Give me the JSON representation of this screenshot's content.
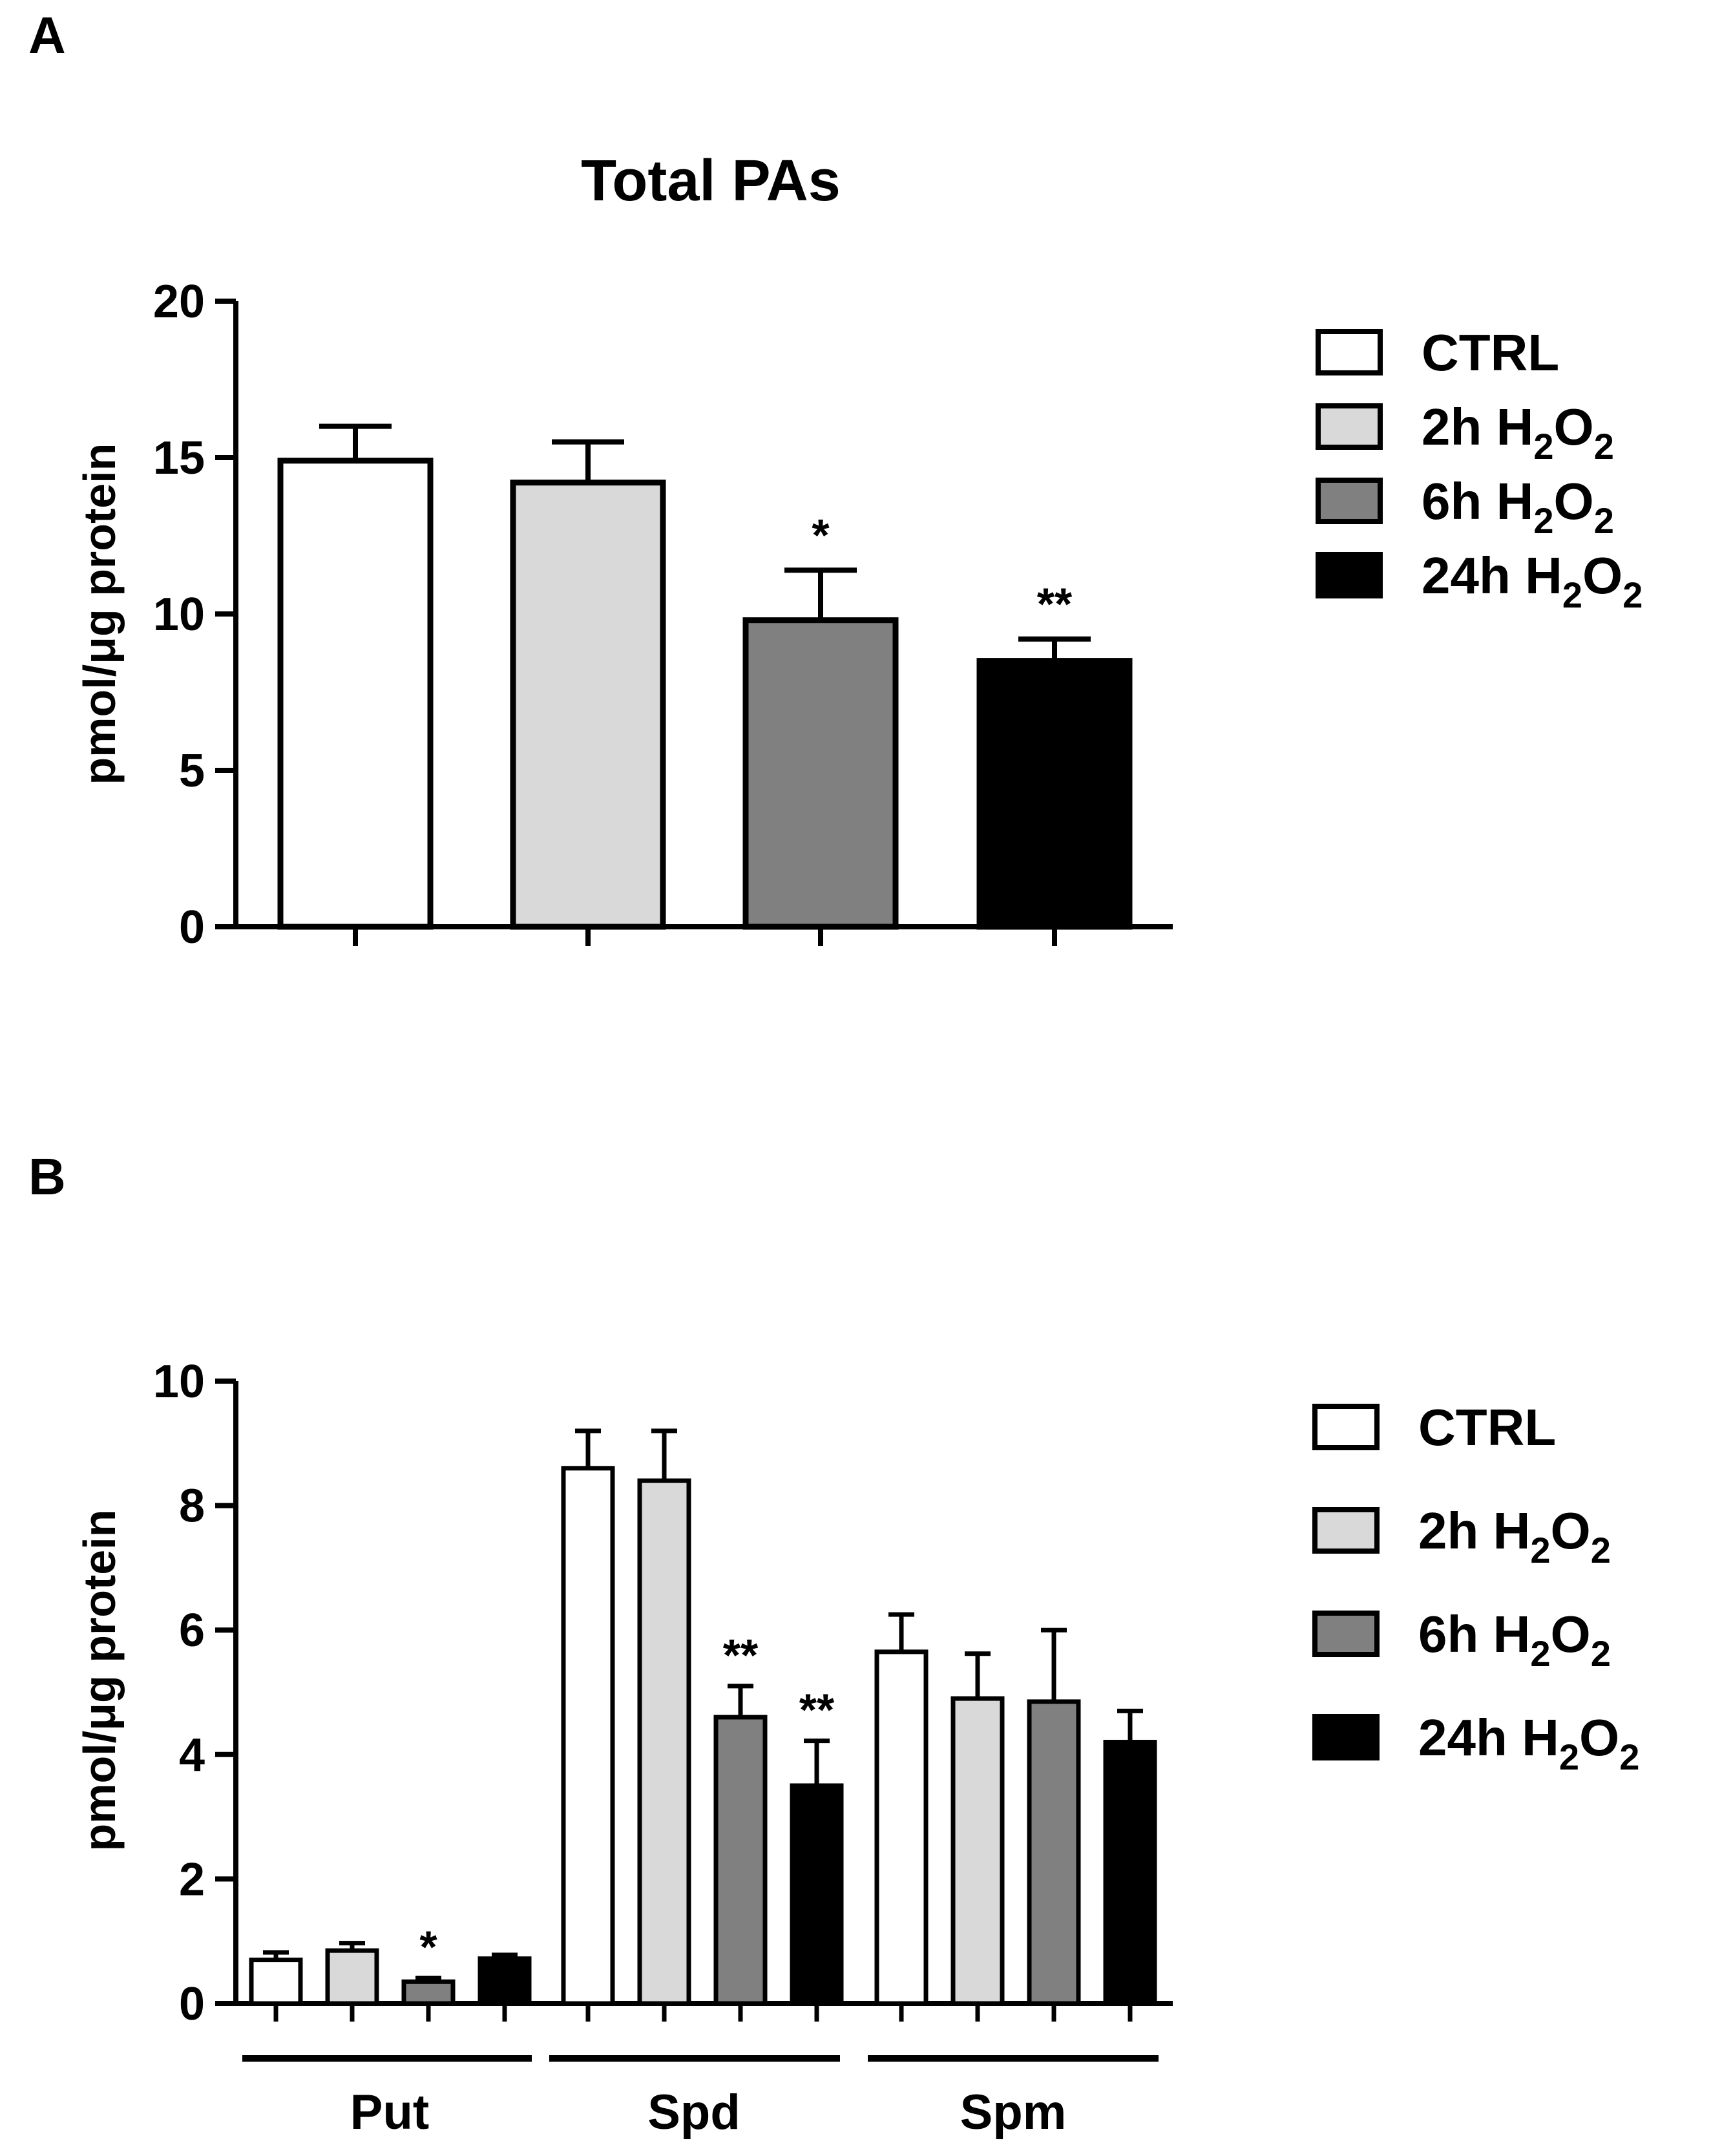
{
  "chart_data": [
    {
      "panel": "A",
      "type": "bar",
      "title": "Total PAs",
      "ylabel": "pmol/μg protein",
      "xlabel": "",
      "ylim": [
        0,
        20
      ],
      "yticks": [
        0,
        5,
        10,
        15,
        20
      ],
      "categories": [
        "CTRL",
        "2h H2O2",
        "6h H2O2",
        "24h H2O2"
      ],
      "values": [
        14.9,
        14.2,
        9.8,
        8.5
      ],
      "errors": [
        1.1,
        1.3,
        1.6,
        0.7
      ],
      "significance": [
        "",
        "",
        "*",
        "**"
      ],
      "legend": [
        {
          "label": "CTRL",
          "prefix": "CTRL",
          "sub": "",
          "tail": ""
        },
        {
          "label": "2h H2O2",
          "prefix": "2h H",
          "sub": "2",
          "tail": "O",
          "sub2": "2"
        },
        {
          "label": "6h H2O2",
          "prefix": "6h H",
          "sub": "2",
          "tail": "O",
          "sub2": "2"
        },
        {
          "label": "24h  H2O2",
          "prefix": "24h  H",
          "sub": "2",
          "tail": "O",
          "sub2": "2"
        }
      ],
      "legend_position": "right"
    },
    {
      "panel": "B",
      "type": "bar",
      "title": "",
      "ylabel": "pmol/μg protein",
      "xlabel": "",
      "ylim": [
        0,
        10
      ],
      "yticks": [
        0,
        2,
        4,
        6,
        8,
        10
      ],
      "groups": [
        "Put",
        "Spd",
        "Spm"
      ],
      "series": [
        {
          "name": "CTRL",
          "values": [
            0.7,
            8.6,
            5.65
          ],
          "errors": [
            0.12,
            0.6,
            0.6
          ],
          "significance": [
            "",
            "",
            ""
          ]
        },
        {
          "name": "2h H2O2",
          "values": [
            0.85,
            8.4,
            4.9
          ],
          "errors": [
            0.12,
            0.8,
            0.72
          ],
          "significance": [
            "",
            "",
            ""
          ]
        },
        {
          "name": "6h H2O2",
          "values": [
            0.35,
            4.6,
            4.85
          ],
          "errors": [
            0.06,
            0.5,
            1.15
          ],
          "significance": [
            "*",
            "**",
            ""
          ]
        },
        {
          "name": "24h H2O2",
          "values": [
            0.72,
            3.5,
            4.2
          ],
          "errors": [
            0.06,
            0.72,
            0.5
          ],
          "significance": [
            "",
            "**",
            ""
          ]
        }
      ],
      "legend": [
        {
          "label": "CTRL",
          "prefix": "CTRL",
          "sub": "",
          "tail": ""
        },
        {
          "label": "2h H2O2",
          "prefix": "2h H",
          "sub": "2",
          "tail": "O",
          "sub2": "2"
        },
        {
          "label": "6h H2O2",
          "prefix": "6h H",
          "sub": "2",
          "tail": "O",
          "sub2": "2"
        },
        {
          "label": "24h H2O2",
          "prefix": "24h H",
          "sub": "2",
          "tail": "O",
          "sub2": "2"
        }
      ],
      "legend_position": "right"
    }
  ],
  "colors": {
    "ctrl": "#ffffff",
    "h2": "#d9d9d9",
    "h6": "#808080",
    "h24": "#000000",
    "stroke": "#000000"
  },
  "panel_labels": [
    "A",
    "B"
  ]
}
